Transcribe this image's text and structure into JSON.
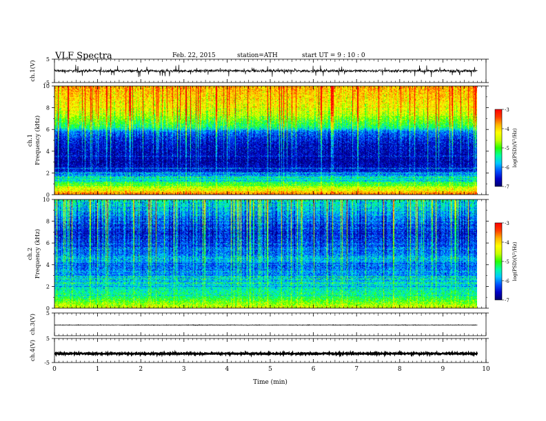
{
  "header": {
    "title": "VLF  Spectra",
    "date": "Feb. 22, 2015",
    "station": "station=ATH",
    "start_ut": "start  UT  =   9  : 10 : 0"
  },
  "colors": {
    "colormap": [
      "#00006e",
      "#0000c8",
      "#0050ff",
      "#00c8ff",
      "#00ffa0",
      "#28ff00",
      "#c8ff00",
      "#ffff00",
      "#ffb400",
      "#ff3c00",
      "#ff0000",
      "#ffffff"
    ],
    "trace": "#000000"
  },
  "chart_data": [
    {
      "type": "line",
      "name": "ch1-waveform",
      "ylabel": "ch.1(V)",
      "ylim": [
        -5,
        5
      ],
      "yticks": [
        "5",
        "-5"
      ],
      "baseline": 0,
      "noise_amplitude": 0.6,
      "spike_amplitude": 2.5
    },
    {
      "type": "heatmap",
      "name": "ch1-spectrogram",
      "ylabel": [
        "ch.1",
        "Frequency  (kHz)"
      ],
      "ylim": [
        0,
        10
      ],
      "yticks": [
        "0",
        "2",
        "4",
        "6",
        "8",
        "10"
      ],
      "colorbar": {
        "label": "log(PSD)(V²/Hz)",
        "range": [
          -7,
          -3
        ],
        "ticks": [
          "-3",
          "-4",
          "-5",
          "-6",
          "-7"
        ]
      },
      "profile_khz": [
        0,
        0.5,
        1,
        1.5,
        2,
        2.5,
        3,
        4,
        5,
        5.8,
        6.2,
        7,
        8,
        9,
        10
      ],
      "profile_logpsd": [
        -3.5,
        -4.3,
        -5.0,
        -5.6,
        -6.2,
        -6.6,
        -6.7,
        -6.6,
        -6.4,
        -6.0,
        -5.2,
        -4.7,
        -4.2,
        -3.9,
        -3.7
      ]
    },
    {
      "type": "heatmap",
      "name": "ch2-spectrogram",
      "ylabel": [
        "ch.2",
        "Frequency  (kHz)"
      ],
      "ylim": [
        0,
        10
      ],
      "yticks": [
        "0",
        "2",
        "4",
        "6",
        "8",
        "10"
      ],
      "colorbar": {
        "label": "log(PSD)(V²/Hz)",
        "range": [
          -7,
          -3
        ],
        "ticks": [
          "-3",
          "-4",
          "-5",
          "-6",
          "-7"
        ]
      },
      "profile_khz": [
        0,
        0.5,
        1,
        1.5,
        2,
        3,
        4,
        4.5,
        5,
        6,
        7,
        8,
        9,
        10
      ],
      "profile_logpsd": [
        -4.4,
        -4.8,
        -5.2,
        -5.4,
        -5.6,
        -5.9,
        -6.1,
        -5.8,
        -6.0,
        -6.2,
        -6.3,
        -6.1,
        -5.7,
        -5.5
      ]
    },
    {
      "type": "line",
      "name": "ch3-waveform",
      "ylabel": "ch.3(V)",
      "ylim": [
        -5,
        5
      ],
      "yticks": [
        "5"
      ],
      "baseline": -0.3,
      "noise_amplitude": 0.15,
      "spike_amplitude": 0
    },
    {
      "type": "line",
      "name": "ch4-waveform",
      "ylabel": "ch.4(V)",
      "ylim": [
        -5,
        5
      ],
      "yticks": [
        "5",
        "-5"
      ],
      "baseline": -1.3,
      "noise_amplitude": 0.3,
      "spike_amplitude": 0
    }
  ],
  "xaxis": {
    "label": "Time  (min)",
    "range": [
      0,
      10
    ],
    "data_end": 9.8,
    "ticks": [
      "0",
      "1",
      "2",
      "3",
      "4",
      "5",
      "6",
      "7",
      "8",
      "9",
      "10"
    ]
  }
}
